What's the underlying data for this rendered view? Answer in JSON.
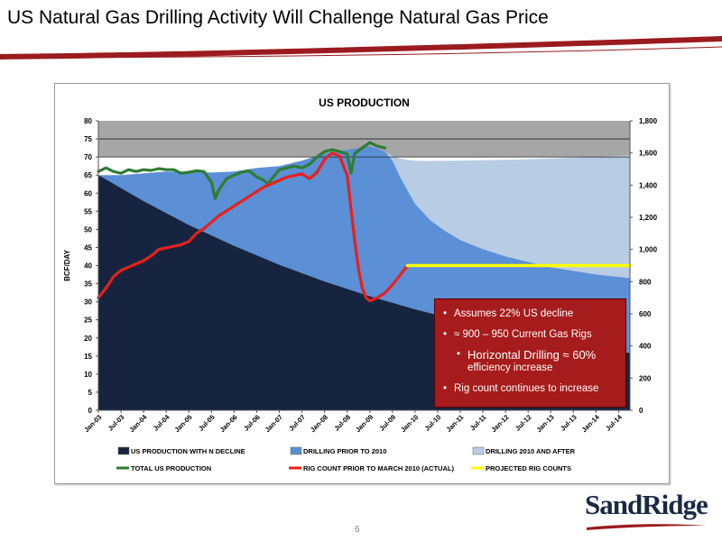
{
  "slide": {
    "title": "US Natural Gas Drilling Activity Will Challenge Natural Gas Price",
    "page_number": "6",
    "logo_text": "SandRidge",
    "colors": {
      "accent_red": "#9b1b1e",
      "navy": "#1a2a44"
    }
  },
  "callout": {
    "items": [
      "Assumes 22% US decline",
      "≈ 900 – 950 Current Gas Rigs"
    ],
    "sub_main": "Horizontal Drilling ≈ 60%",
    "sub_rest": "efficiency increase",
    "last": "Rig count continues to increase"
  },
  "chart_data": {
    "type": "area",
    "title": "US PRODUCTION",
    "ylabel": "BCF/DAY",
    "ylim": [
      0,
      80
    ],
    "y2lim": [
      0,
      1800
    ],
    "y_ticks": [
      "0",
      "5",
      "10",
      "15",
      "20",
      "25",
      "30",
      "35",
      "40",
      "45",
      "50",
      "55",
      "60",
      "65",
      "70",
      "75",
      "80"
    ],
    "y2_ticks": [
      "0",
      "200",
      "400",
      "600",
      "800",
      "1,000",
      "1,200",
      "1,400",
      "1,600",
      "1,800"
    ],
    "x_range": [
      0,
      141
    ],
    "x_ticks": [
      "Jan-03",
      "Jul-03",
      "Jan-04",
      "Jul-04",
      "Jan-05",
      "Jul-05",
      "Jan-06",
      "Jul-06",
      "Jan-07",
      "Jul-07",
      "Jan-08",
      "Jul-08",
      "Jan-09",
      "Jul-09",
      "Jan-10",
      "Jul-10",
      "Jan-11",
      "Jul-11",
      "Jan-12",
      "Jul-12",
      "Jan-13",
      "Jul-13",
      "Jan-14",
      "Jul-14"
    ],
    "series": [
      {
        "name": "US PRODUCTION WITH N DECLINE",
        "color": "#16243f",
        "kind": "area",
        "x": [
          0,
          12,
          24,
          36,
          48,
          60,
          72,
          84,
          96,
          108,
          120,
          132,
          141
        ],
        "y": [
          65,
          57.8,
          51.2,
          45.4,
          40.2,
          35.6,
          31.5,
          27.9,
          24.7,
          21.9,
          19.4,
          17.2,
          15.8
        ]
      },
      {
        "name": "DRILLING PRIOR TO 2010",
        "color": "#5b8fd6",
        "kind": "area",
        "x": [
          0,
          6,
          12,
          18,
          24,
          30,
          36,
          42,
          48,
          54,
          60,
          66,
          72,
          76,
          78,
          80,
          84,
          88,
          92,
          96,
          102,
          108,
          114,
          120,
          126,
          132,
          141
        ],
        "y": [
          65,
          65,
          65.5,
          66,
          66,
          65.7,
          66,
          67,
          67.5,
          69,
          71,
          72,
          73,
          71.5,
          69,
          64.5,
          57,
          52.5,
          49.5,
          47,
          44.5,
          42.5,
          41,
          39.5,
          38.5,
          37.5,
          36.5
        ]
      },
      {
        "name": "DRILLING 2010 AND AFTER",
        "color": "#b8cce4",
        "kind": "area",
        "x": [
          76,
          78,
          80,
          82,
          84,
          88,
          96,
          108,
          120,
          132,
          141
        ],
        "y": [
          71.5,
          70.3,
          69.6,
          69.2,
          69,
          68.9,
          69,
          69.2,
          69.6,
          70,
          70.5
        ]
      },
      {
        "name": "TOTAL US PRODUCTION",
        "color": "#2e7d32",
        "kind": "line",
        "x": [
          0,
          2,
          4,
          6,
          8,
          10,
          12,
          14,
          16,
          18,
          20,
          22,
          24,
          26,
          28,
          30,
          31,
          32,
          34,
          36,
          38,
          40,
          42,
          44,
          45,
          46,
          48,
          50,
          52,
          54,
          56,
          58,
          60,
          62,
          64,
          66,
          67,
          68,
          70,
          72,
          74,
          76
        ],
        "y": [
          66,
          67,
          66,
          65.5,
          66.5,
          66,
          66.5,
          66.3,
          66.8,
          66.5,
          66.5,
          65.5,
          65.8,
          66.2,
          66,
          63,
          58.5,
          61,
          64,
          65,
          65.8,
          66.2,
          64.5,
          63.5,
          62.5,
          64,
          66.5,
          67,
          67.5,
          67,
          68,
          70,
          71.5,
          72,
          71.5,
          70.8,
          65.5,
          71,
          72.5,
          74,
          73,
          72.5
        ]
      },
      {
        "name": "RIG COUNT PRIOR TO MARCH 2010 (ACTUAL)",
        "color": "#e8201b",
        "kind": "line",
        "axis": "right",
        "x": [
          0,
          2,
          4,
          6,
          8,
          10,
          12,
          14,
          16,
          18,
          20,
          22,
          24,
          26,
          28,
          30,
          32,
          34,
          36,
          38,
          40,
          42,
          44,
          46,
          48,
          50,
          52,
          54,
          56,
          58,
          60,
          62,
          64,
          66,
          68,
          69,
          70,
          71,
          72,
          73,
          74,
          76,
          78,
          80,
          82
        ],
        "y": [
          700,
          760,
          830,
          870,
          890,
          910,
          930,
          960,
          1000,
          1010,
          1020,
          1030,
          1050,
          1100,
          1130,
          1170,
          1210,
          1240,
          1270,
          1300,
          1330,
          1360,
          1390,
          1410,
          1430,
          1450,
          1460,
          1470,
          1440,
          1480,
          1560,
          1600,
          1580,
          1460,
          1050,
          880,
          760,
          700,
          680,
          690,
          700,
          730,
          780,
          840,
          900
        ]
      },
      {
        "name": "PROJECTED RIG COUNTS",
        "color": "#ffff00",
        "kind": "line",
        "axis": "right",
        "x": [
          82,
          141
        ],
        "y": [
          900,
          900
        ]
      }
    ],
    "reference_band": {
      "y": [
        70,
        80
      ],
      "color": "#a6a6a6"
    },
    "legend": {
      "position": "bottom"
    }
  }
}
